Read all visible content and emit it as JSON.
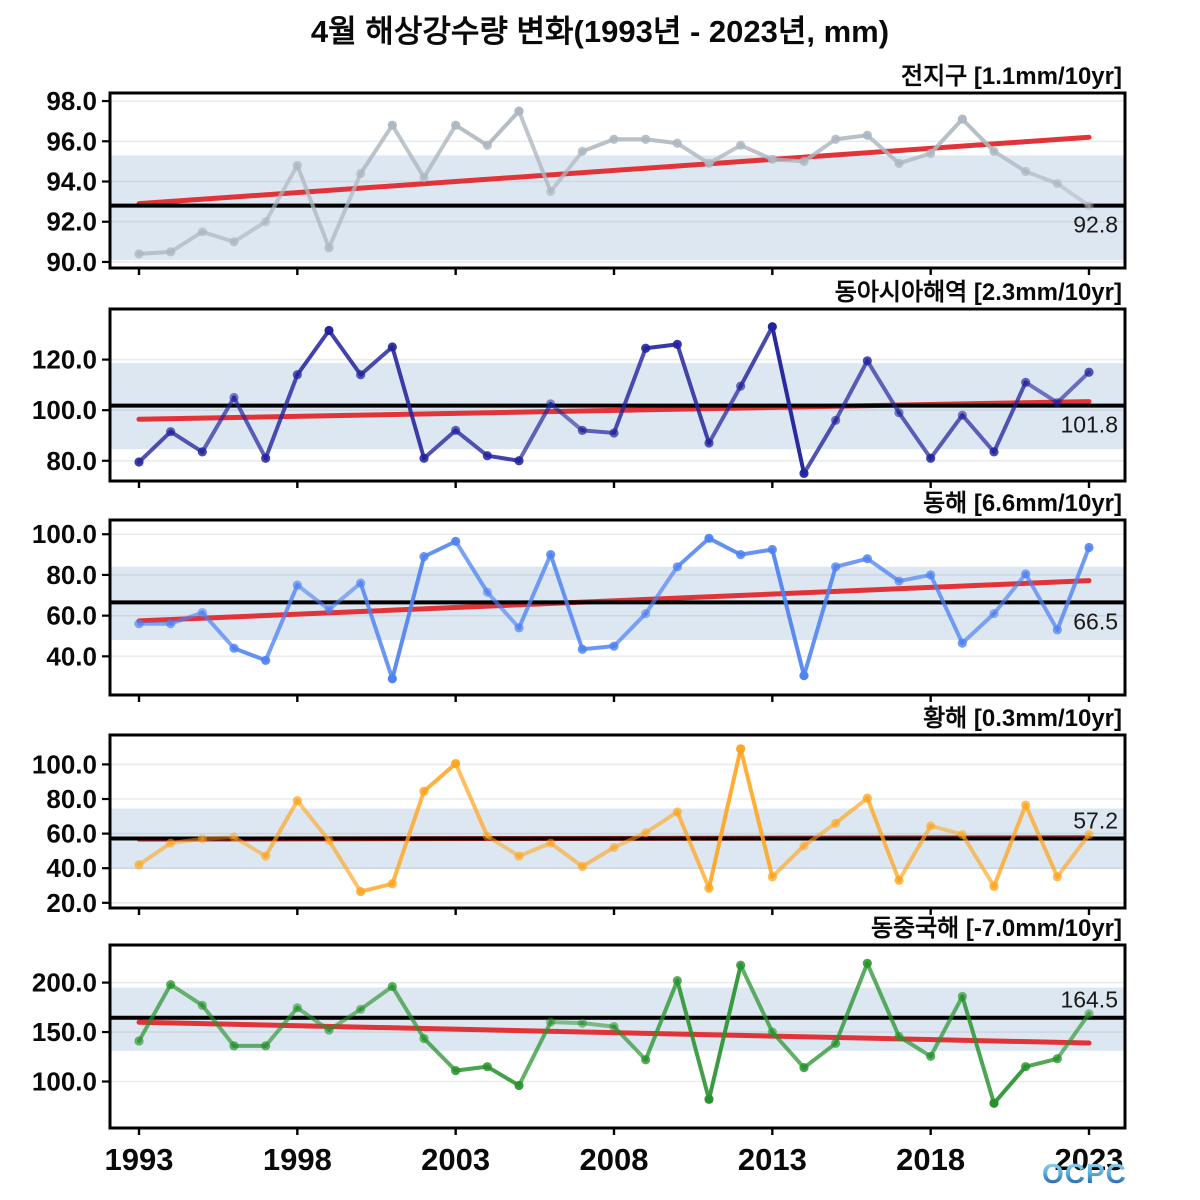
{
  "title": "4월 해상강수량 변화(1993년 - 2023년, mm)",
  "logo": {
    "text": "OCPC"
  },
  "x_axis": {
    "tick_years": [
      1993,
      1998,
      2003,
      2008,
      2013,
      2018,
      2023
    ],
    "tick_labels": [
      "1993",
      "1998",
      "2003",
      "2008",
      "2013",
      "2018",
      "2023"
    ]
  },
  "style_colors": {
    "trend_red": "#e23338",
    "mean_black": "#000000",
    "band_fill": "#dde7f1",
    "grid": "#7e8fa0",
    "axis": "#000000"
  },
  "chart_data": [
    {
      "type": "line",
      "title": "전지구 [1.1mm/10yr]",
      "region": "전지구",
      "trend_rate_label": "1.1mm/10yr",
      "years": [
        1993,
        1994,
        1995,
        1996,
        1997,
        1998,
        1999,
        2000,
        2001,
        2002,
        2003,
        2004,
        2005,
        2006,
        2007,
        2008,
        2009,
        2010,
        2011,
        2012,
        2013,
        2014,
        2015,
        2016,
        2017,
        2018,
        2019,
        2020,
        2021,
        2022,
        2023
      ],
      "values": [
        90.4,
        90.5,
        91.5,
        91.0,
        92.0,
        94.8,
        90.7,
        94.4,
        96.8,
        94.2,
        96.8,
        95.8,
        97.5,
        93.5,
        95.5,
        96.1,
        96.1,
        95.9,
        94.9,
        95.8,
        95.1,
        95.0,
        96.1,
        96.3,
        94.9,
        95.4,
        97.1,
        95.5,
        94.5,
        93.9,
        92.8
      ],
      "mean": 92.8,
      "mean_label": "92.8",
      "mean_label_side": "below",
      "band": [
        90.1,
        95.3
      ],
      "trend_start_end": [
        92.9,
        96.2
      ],
      "yticks": [
        90,
        92,
        94,
        96,
        98
      ],
      "ytick_labels": [
        "90.0",
        "92.0",
        "94.0",
        "96.0",
        "98.0"
      ],
      "ylim": [
        89.7,
        98.4
      ],
      "line_color": "#aeb7c0"
    },
    {
      "type": "line",
      "title": "동아시아해역 [2.3mm/10yr]",
      "region": "동아시아해역",
      "trend_rate_label": "2.3mm/10yr",
      "years": [
        1993,
        1994,
        1995,
        1996,
        1997,
        1998,
        1999,
        2000,
        2001,
        2002,
        2003,
        2004,
        2005,
        2006,
        2007,
        2008,
        2009,
        2010,
        2011,
        2012,
        2013,
        2014,
        2015,
        2016,
        2017,
        2018,
        2019,
        2020,
        2021,
        2022,
        2023
      ],
      "values": [
        79.5,
        91.5,
        83.5,
        105,
        81,
        114,
        131.5,
        114,
        125,
        81,
        92,
        82,
        80,
        102.5,
        92,
        91,
        124.5,
        126,
        87,
        109.5,
        133,
        75,
        96,
        119.5,
        99,
        81,
        98,
        83.5,
        111,
        103,
        115
      ],
      "mean": 101.8,
      "mean_label": "101.8",
      "mean_label_side": "below",
      "band": [
        84.6,
        118.6
      ],
      "trend_start_end": [
        96.4,
        103.4
      ],
      "yticks": [
        80,
        100,
        120
      ],
      "ytick_labels": [
        "80.0",
        "100.0",
        "120.0"
      ],
      "ylim": [
        72,
        140
      ],
      "line_color": "#23249c"
    },
    {
      "type": "line",
      "title": "동해 [6.6mm/10yr]",
      "region": "동해",
      "trend_rate_label": "6.6mm/10yr",
      "years": [
        1993,
        1994,
        1995,
        1996,
        1997,
        1998,
        1999,
        2000,
        2001,
        2002,
        2003,
        2004,
        2005,
        2006,
        2007,
        2008,
        2009,
        2010,
        2011,
        2012,
        2013,
        2014,
        2015,
        2016,
        2017,
        2018,
        2019,
        2020,
        2021,
        2022,
        2023
      ],
      "values": [
        56,
        56,
        61.5,
        44,
        38,
        75,
        63,
        76,
        29,
        89,
        96.5,
        71.5,
        54,
        90,
        43.5,
        45,
        61,
        84,
        98,
        90,
        92.5,
        30.5,
        84,
        88,
        77,
        80,
        46.5,
        61,
        80.5,
        53,
        93.5
      ],
      "mean": 66.5,
      "mean_label": "66.5",
      "mean_label_side": "below",
      "band": [
        48,
        84
      ],
      "trend_start_end": [
        57.4,
        77.2
      ],
      "yticks": [
        40,
        60,
        80,
        100
      ],
      "ytick_labels": [
        "40.0",
        "60.0",
        "80.0",
        "100.0"
      ],
      "ylim": [
        21,
        107
      ],
      "line_color": "#4f82f2"
    },
    {
      "type": "line",
      "title": "황해 [0.3mm/10yr]",
      "region": "황해",
      "trend_rate_label": "0.3mm/10yr",
      "years": [
        1993,
        1994,
        1995,
        1996,
        1997,
        1998,
        1999,
        2000,
        2001,
        2002,
        2003,
        2004,
        2005,
        2006,
        2007,
        2008,
        2009,
        2010,
        2011,
        2012,
        2013,
        2014,
        2015,
        2016,
        2017,
        2018,
        2019,
        2020,
        2021,
        2022,
        2023
      ],
      "values": [
        42,
        54.5,
        57,
        58,
        47,
        79,
        56,
        26.5,
        31,
        84.5,
        100.5,
        58.5,
        47,
        54.5,
        41,
        52,
        60.5,
        72.5,
        28.5,
        109,
        35,
        53,
        66,
        80.5,
        33,
        64.5,
        59.5,
        29.5,
        76.5,
        35,
        59.5
      ],
      "mean": 57.2,
      "mean_label": "57.2",
      "mean_label_side": "above",
      "band": [
        39.5,
        74.5
      ],
      "trend_start_end": [
        56.8,
        57.7
      ],
      "yticks": [
        20,
        40,
        60,
        80,
        100
      ],
      "ytick_labels": [
        "20.0",
        "40.0",
        "60.0",
        "80.0",
        "100.0"
      ],
      "ylim": [
        17,
        117
      ],
      "line_color": "#ffa51e"
    },
    {
      "type": "line",
      "title": "동중국해 [-7.0mm/10yr]",
      "region": "동중국해",
      "trend_rate_label": "-7.0mm/10yr",
      "years": [
        1993,
        1994,
        1995,
        1996,
        1997,
        1998,
        1999,
        2000,
        2001,
        2002,
        2003,
        2004,
        2005,
        2006,
        2007,
        2008,
        2009,
        2010,
        2011,
        2012,
        2013,
        2014,
        2015,
        2016,
        2017,
        2018,
        2019,
        2020,
        2021,
        2022,
        2023
      ],
      "values": [
        141,
        198,
        177,
        136,
        136,
        174.5,
        152,
        173,
        196,
        143.5,
        111,
        115,
        96,
        160,
        159,
        155.5,
        122,
        202,
        82,
        217.5,
        150,
        114,
        138.5,
        219.5,
        145.5,
        125.5,
        186,
        78,
        115,
        123,
        168.5
      ],
      "mean": 164.5,
      "mean_label": "164.5",
      "mean_label_side": "above",
      "band": [
        131,
        195
      ],
      "trend_start_end": [
        159.9,
        138.9
      ],
      "yticks": [
        100,
        150,
        200
      ],
      "ytick_labels": [
        "100.0",
        "150.0",
        "200.0"
      ],
      "ylim": [
        53,
        238
      ],
      "line_color": "#27922d"
    }
  ]
}
